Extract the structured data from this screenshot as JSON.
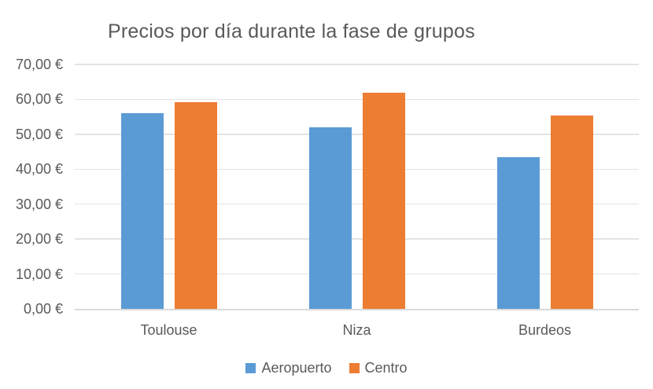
{
  "title": "Precios por día durante la fase de grupos",
  "colors": {
    "series_aeropuerto": "#5B9BD5",
    "series_centro": "#ED7D31",
    "text": "#595959",
    "gridline": "#E3E3E3",
    "axis_line": "#D9D9D9",
    "background": "#FFFFFF"
  },
  "chart_data": {
    "type": "bar",
    "title": "Precios por día durante la fase de grupos",
    "categories": [
      "Toulouse",
      "Niza",
      "Burdeos"
    ],
    "series": [
      {
        "name": "Aeropuerto",
        "color": "#5B9BD5",
        "values": [
          56.0,
          52.1,
          43.4
        ]
      },
      {
        "name": "Centro",
        "color": "#ED7D31",
        "values": [
          59.3,
          61.8,
          55.4
        ]
      }
    ],
    "xlabel": "",
    "ylabel": "",
    "ylim": [
      0,
      70
    ],
    "ytick_step": 10,
    "ytick_labels": [
      "0,00 €",
      "10,00 €",
      "20,00 €",
      "30,00 €",
      "40,00 €",
      "50,00 €",
      "60,00 €",
      "70,00 €"
    ],
    "grid": true,
    "legend_position": "bottom",
    "currency": "EUR"
  },
  "legend": {
    "items": [
      {
        "label": "Aeropuerto",
        "color": "#5B9BD5"
      },
      {
        "label": "Centro",
        "color": "#ED7D31"
      }
    ]
  }
}
